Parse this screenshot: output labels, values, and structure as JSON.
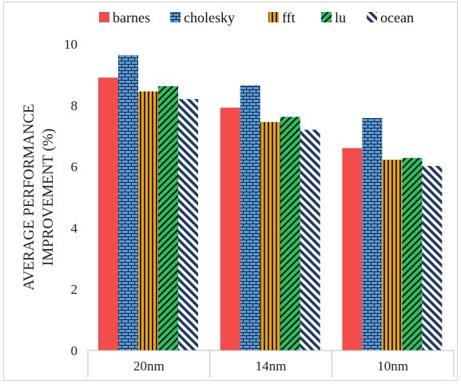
{
  "chart_data": {
    "type": "bar",
    "title": "",
    "xlabel": "",
    "ylabel_lines": [
      "AVERAGE PERFORMANCE",
      "IMPROVEMENT (%)"
    ],
    "ylim": [
      0,
      10
    ],
    "yticks": [
      0,
      2,
      4,
      6,
      8,
      10
    ],
    "grid": false,
    "legend_position": "top",
    "categories": [
      "20nm",
      "14nm",
      "10nm"
    ],
    "series": [
      {
        "name": "barnes",
        "values": [
          8.9,
          7.92,
          6.6
        ],
        "color": "#f44b4b",
        "pattern": "solid"
      },
      {
        "name": "cholesky",
        "values": [
          9.63,
          8.65,
          7.58
        ],
        "color": "#5b9bd5",
        "pattern": "brick"
      },
      {
        "name": "fft",
        "values": [
          8.45,
          7.45,
          6.22
        ],
        "color": "#f0a500",
        "pattern": "vertical-stripes"
      },
      {
        "name": "lu",
        "values": [
          8.62,
          7.62,
          6.28
        ],
        "color": "#22c55e",
        "pattern": "diagonal-stripes"
      },
      {
        "name": "ocean",
        "values": [
          8.2,
          7.2,
          6.02
        ],
        "color": "#1f3864",
        "pattern": "wide-diagonal-stripes"
      }
    ]
  }
}
